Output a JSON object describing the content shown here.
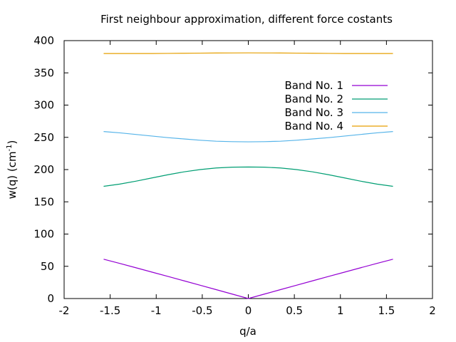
{
  "chart_data": {
    "type": "line",
    "title": "First neighbour approximation, different force costants",
    "xlabel": "q/a",
    "ylabel": "w(q) (cm",
    "ylabel_sup": "-1",
    "ylabel_close": ")",
    "xlim": [
      -2,
      2
    ],
    "ylim": [
      0,
      400
    ],
    "xticks": [
      -2,
      -1.5,
      -1,
      -0.5,
      0,
      0.5,
      1,
      1.5,
      2
    ],
    "xtick_labels": [
      "-2",
      "-1.5",
      "-1",
      "-0.5",
      "0",
      "0.5",
      "1",
      "1.5",
      "2"
    ],
    "yticks": [
      0,
      50,
      100,
      150,
      200,
      250,
      300,
      350,
      400
    ],
    "ytick_labels": [
      "0",
      "50",
      "100",
      "150",
      "200",
      "250",
      "300",
      "350",
      "400"
    ],
    "grid": false,
    "legend_position": "top-right",
    "x": [
      -1.5708,
      -1.3963,
      -1.2217,
      -1.0472,
      -0.8727,
      -0.6981,
      -0.5236,
      -0.3491,
      -0.1745,
      0,
      0.1745,
      0.3491,
      0.5236,
      0.6981,
      0.8727,
      1.0472,
      1.2217,
      1.3963,
      1.5708
    ],
    "series": [
      {
        "name": "Band No. 1",
        "color": "#9400d3",
        "values": [
          61,
          54.5,
          47.8,
          41,
          34.3,
          27.5,
          20.7,
          13.8,
          6.9,
          0,
          6.9,
          13.8,
          20.7,
          27.5,
          34.3,
          41,
          47.8,
          54.5,
          61
        ]
      },
      {
        "name": "Band No. 2",
        "color": "#009e73",
        "values": [
          174,
          177.5,
          182,
          187,
          192,
          196.5,
          200,
          202.5,
          203.7,
          204,
          203.7,
          202.5,
          200,
          196.5,
          192,
          187,
          182,
          177.5,
          174
        ]
      },
      {
        "name": "Band No. 3",
        "color": "#56b4e9",
        "values": [
          259,
          257,
          254.5,
          252,
          249.5,
          247.5,
          245.5,
          244,
          243.3,
          243,
          243.3,
          244,
          245.5,
          247.5,
          249.5,
          252,
          254.5,
          257,
          259
        ]
      },
      {
        "name": "Band No. 4",
        "color": "#e69f00",
        "values": [
          380,
          380,
          380,
          380,
          380.2,
          380.4,
          380.6,
          380.8,
          380.9,
          381,
          380.9,
          380.8,
          380.6,
          380.4,
          380.2,
          380,
          380,
          380,
          380
        ]
      }
    ]
  }
}
